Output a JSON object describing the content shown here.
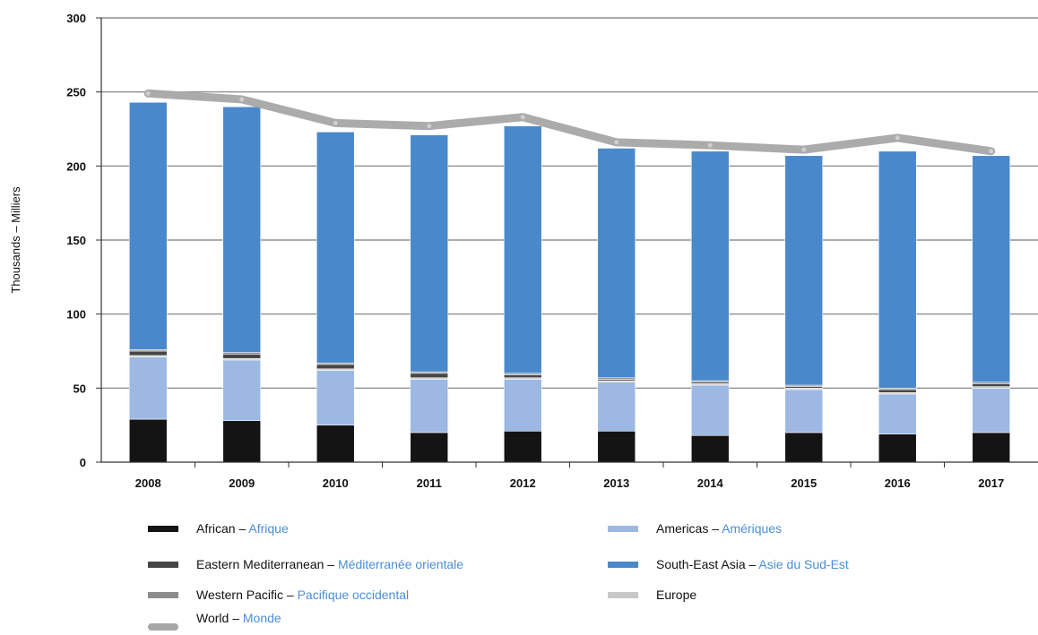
{
  "chart_data": {
    "type": "bar",
    "stacked": true,
    "ylabel": "Thousands – Milliers",
    "ylim": [
      0,
      300
    ],
    "yticks": [
      0,
      50,
      100,
      150,
      200,
      250,
      300
    ],
    "grid": true,
    "categories": [
      "2008",
      "2009",
      "2010",
      "2011",
      "2012",
      "2013",
      "2014",
      "2015",
      "2016",
      "2017"
    ],
    "series": [
      {
        "name": "African",
        "name_fr": "Afrique",
        "color": "#141414",
        "values": [
          29,
          28,
          25,
          20,
          21,
          21,
          18,
          20,
          19,
          20
        ]
      },
      {
        "name": "Americas",
        "name_fr": "Amériques",
        "color": "#9cb8e3",
        "values": [
          42,
          41,
          37,
          36,
          35,
          33,
          34,
          29,
          27,
          30
        ]
      },
      {
        "name": "Europe",
        "name_fr": "",
        "color": "#c8c8c8",
        "values": [
          1,
          1,
          1,
          1,
          1,
          1,
          1,
          1,
          1,
          1
        ]
      },
      {
        "name": "Eastern Mediterranean",
        "name_fr": "Méditerranée orientale",
        "color": "#464646",
        "values": [
          3,
          3,
          3,
          3,
          2,
          1,
          1,
          1,
          2,
          2
        ]
      },
      {
        "name": "Western Pacific",
        "name_fr": "Pacifique occidental",
        "color": "#8c8c8c",
        "values": [
          1,
          1,
          1,
          1,
          1,
          1,
          1,
          1,
          1,
          1
        ]
      },
      {
        "name": "South-East Asia",
        "name_fr": "Asie du Sud-Est",
        "color": "#4a88cc",
        "values": [
          167,
          166,
          156,
          160,
          167,
          155,
          155,
          155,
          160,
          153
        ]
      }
    ],
    "world": {
      "name": "World",
      "name_fr": "Monde",
      "color": "#a6a6a6",
      "values": [
        249,
        245,
        229,
        227,
        233,
        216,
        214,
        211,
        219,
        210
      ]
    }
  },
  "legend": [
    {
      "key": "african",
      "en": "African",
      "fr": "Afrique",
      "color": "#141414"
    },
    {
      "key": "east-med",
      "en": "Eastern Mediterranean",
      "fr": "Méditerranée orientale",
      "color": "#464646"
    },
    {
      "key": "west-pacific",
      "en": "Western Pacific",
      "fr": "Pacifique occidental",
      "color": "#8c8c8c"
    },
    {
      "key": "world",
      "en": "World",
      "fr": "Monde",
      "color": "#a6a6a6"
    },
    {
      "key": "americas",
      "en": "Americas",
      "fr": "Amériques",
      "color": "#9cb8e3"
    },
    {
      "key": "sea",
      "en": "South-East Asia",
      "fr": "Asie du Sud-Est",
      "color": "#4a88cc"
    },
    {
      "key": "europe",
      "en": "Europe",
      "fr": "",
      "color": "#c8c8c8"
    }
  ],
  "dash": " – "
}
